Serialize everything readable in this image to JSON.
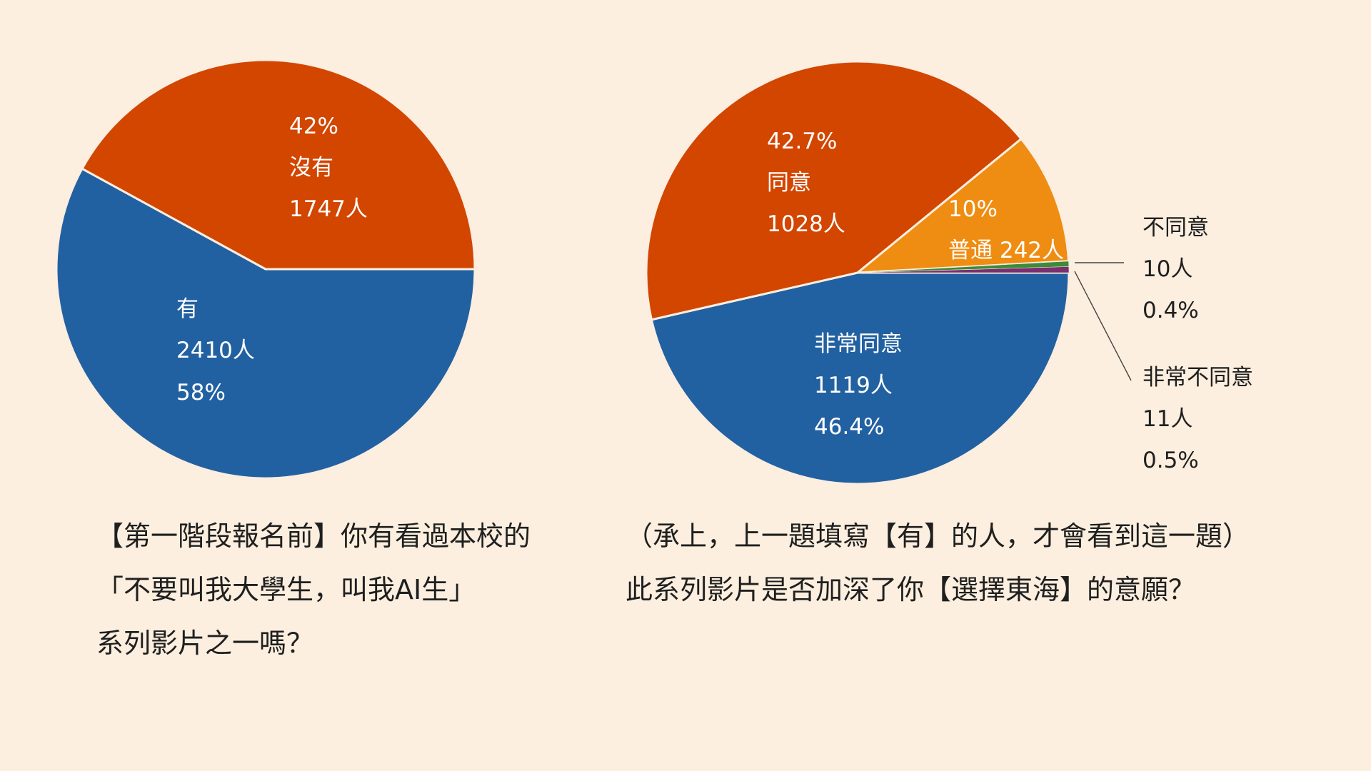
{
  "colors": {
    "background": "#fcefdf",
    "blue": "#2261a1",
    "red": "#d24600",
    "orange": "#ef8c12",
    "green": "#3d8a3a",
    "purple": "#7a2f6e",
    "separator": "#fbeee0"
  },
  "chart_data": [
    {
      "type": "pie",
      "slices": [
        {
          "label": "有",
          "value": 2410,
          "percent": "58%",
          "count_label": "2410人",
          "color": "#2261a1"
        },
        {
          "label": "沒有",
          "value": 1747,
          "percent": "42%",
          "count_label": "1747人",
          "color": "#d24600"
        }
      ],
      "caption": [
        "【第一階段報名前】你有看過本校的",
        "「不要叫我大學生，叫我AI生」",
        "系列影片之一嗎？"
      ]
    },
    {
      "type": "pie",
      "slices": [
        {
          "label": "非常同意",
          "value": 1119,
          "percent": "46.4%",
          "count_label": "1119人",
          "color": "#2261a1"
        },
        {
          "label": "同意",
          "value": 1028,
          "percent": "42.7%",
          "count_label": "1028人",
          "color": "#d24600"
        },
        {
          "label": "普通",
          "value": 242,
          "percent": "10%",
          "count_label": "242人",
          "color": "#ef8c12",
          "combined_label": "普通 242人"
        },
        {
          "label": "不同意",
          "value": 10,
          "percent": "0.4%",
          "count_label": "10人",
          "color": "#3d8a3a"
        },
        {
          "label": "非常不同意",
          "value": 11,
          "percent": "0.5%",
          "count_label": "11人",
          "color": "#7a2f6e"
        }
      ],
      "caption": [
        "（承上，上一題填寫【有】的人，才會看到這一題）",
        "此系列影片是否加深了你【選擇東海】的意願？"
      ]
    }
  ]
}
